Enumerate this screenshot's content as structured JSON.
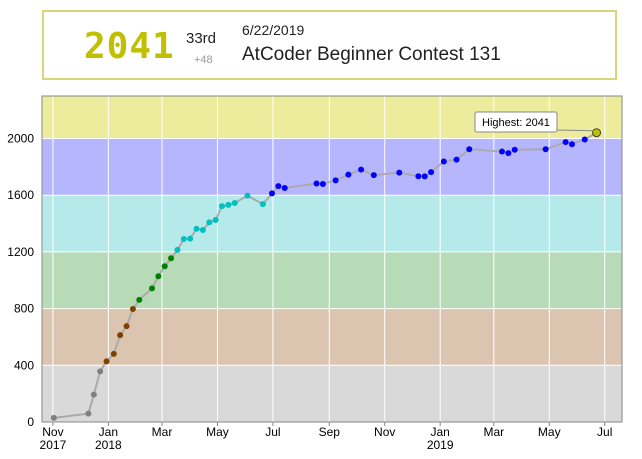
{
  "status": {
    "rating": "2041",
    "rank": "33rd",
    "delta": "+48",
    "date": "6/22/2019",
    "contest": "AtCoder Beginner Contest 131"
  },
  "colors": {
    "bands": [
      "#d9d9d9",
      "#dcc5b0",
      "#b6dbb6",
      "#b6eaea",
      "#b6b6ff",
      "#ecec9c"
    ],
    "grey": "#808080",
    "brown": "#804000",
    "green": "#008000",
    "cyan": "#00c0c0",
    "blue": "#0000ff",
    "yellow": "#c0c000",
    "line": "#aaaaaa"
  },
  "chart_data": {
    "type": "line",
    "ylim": [
      0,
      2300
    ],
    "yticks": [
      0,
      400,
      800,
      1200,
      1600,
      2000
    ],
    "xticks": [
      {
        "date": "2017-11-01",
        "label": "Nov",
        "sub": "2017"
      },
      {
        "date": "2018-01-01",
        "label": "Jan",
        "sub": "2018"
      },
      {
        "date": "2018-03-01",
        "label": "Mar",
        "sub": ""
      },
      {
        "date": "2018-05-01",
        "label": "May",
        "sub": ""
      },
      {
        "date": "2018-07-01",
        "label": "Jul",
        "sub": ""
      },
      {
        "date": "2018-09-01",
        "label": "Sep",
        "sub": ""
      },
      {
        "date": "2018-11-01",
        "label": "Nov",
        "sub": ""
      },
      {
        "date": "2019-01-01",
        "label": "Jan",
        "sub": "2019"
      },
      {
        "date": "2019-03-01",
        "label": "Mar",
        "sub": ""
      },
      {
        "date": "2019-05-01",
        "label": "May",
        "sub": ""
      },
      {
        "date": "2019-07-01",
        "label": "Jul",
        "sub": ""
      }
    ],
    "x_range": [
      "2017-10-20",
      "2019-07-20"
    ],
    "points": [
      [
        "2017-11-02",
        29
      ],
      [
        "2017-12-10",
        59
      ],
      [
        "2017-12-16",
        193
      ],
      [
        "2017-12-23",
        357
      ],
      [
        "2017-12-30",
        428
      ],
      [
        "2018-01-07",
        481
      ],
      [
        "2018-01-14",
        613
      ],
      [
        "2018-01-21",
        676
      ],
      [
        "2018-01-28",
        797
      ],
      [
        "2018-02-04",
        862
      ],
      [
        "2018-02-18",
        943
      ],
      [
        "2018-02-25",
        1028
      ],
      [
        "2018-03-04",
        1099
      ],
      [
        "2018-03-11",
        1155
      ],
      [
        "2018-03-18",
        1214
      ],
      [
        "2018-03-25",
        1291
      ],
      [
        "2018-04-01",
        1294
      ],
      [
        "2018-04-08",
        1363
      ],
      [
        "2018-04-15",
        1355
      ],
      [
        "2018-04-22",
        1408
      ],
      [
        "2018-04-29",
        1425
      ],
      [
        "2018-05-06",
        1523
      ],
      [
        "2018-05-13",
        1532
      ],
      [
        "2018-05-20",
        1545
      ],
      [
        "2018-06-03",
        1597
      ],
      [
        "2018-06-20",
        1537
      ],
      [
        "2018-06-30",
        1613
      ],
      [
        "2018-07-07",
        1664
      ],
      [
        "2018-07-14",
        1651
      ],
      [
        "2018-08-18",
        1683
      ],
      [
        "2018-08-25",
        1679
      ],
      [
        "2018-09-08",
        1705
      ],
      [
        "2018-09-22",
        1745
      ],
      [
        "2018-10-06",
        1781
      ],
      [
        "2018-10-20",
        1742
      ],
      [
        "2018-11-17",
        1759
      ],
      [
        "2018-12-08",
        1734
      ],
      [
        "2018-12-15",
        1733
      ],
      [
        "2018-12-22",
        1763
      ],
      [
        "2019-01-05",
        1838
      ],
      [
        "2019-01-19",
        1851
      ],
      [
        "2019-02-02",
        1924
      ],
      [
        "2019-03-10",
        1908
      ],
      [
        "2019-03-17",
        1897
      ],
      [
        "2019-03-24",
        1921
      ],
      [
        "2019-04-27",
        1924
      ],
      [
        "2019-05-19",
        1975
      ],
      [
        "2019-05-26",
        1960
      ],
      [
        "2019-06-09",
        1993
      ],
      [
        "2019-06-22",
        2041
      ]
    ],
    "annotation": "Highest: 2041"
  }
}
